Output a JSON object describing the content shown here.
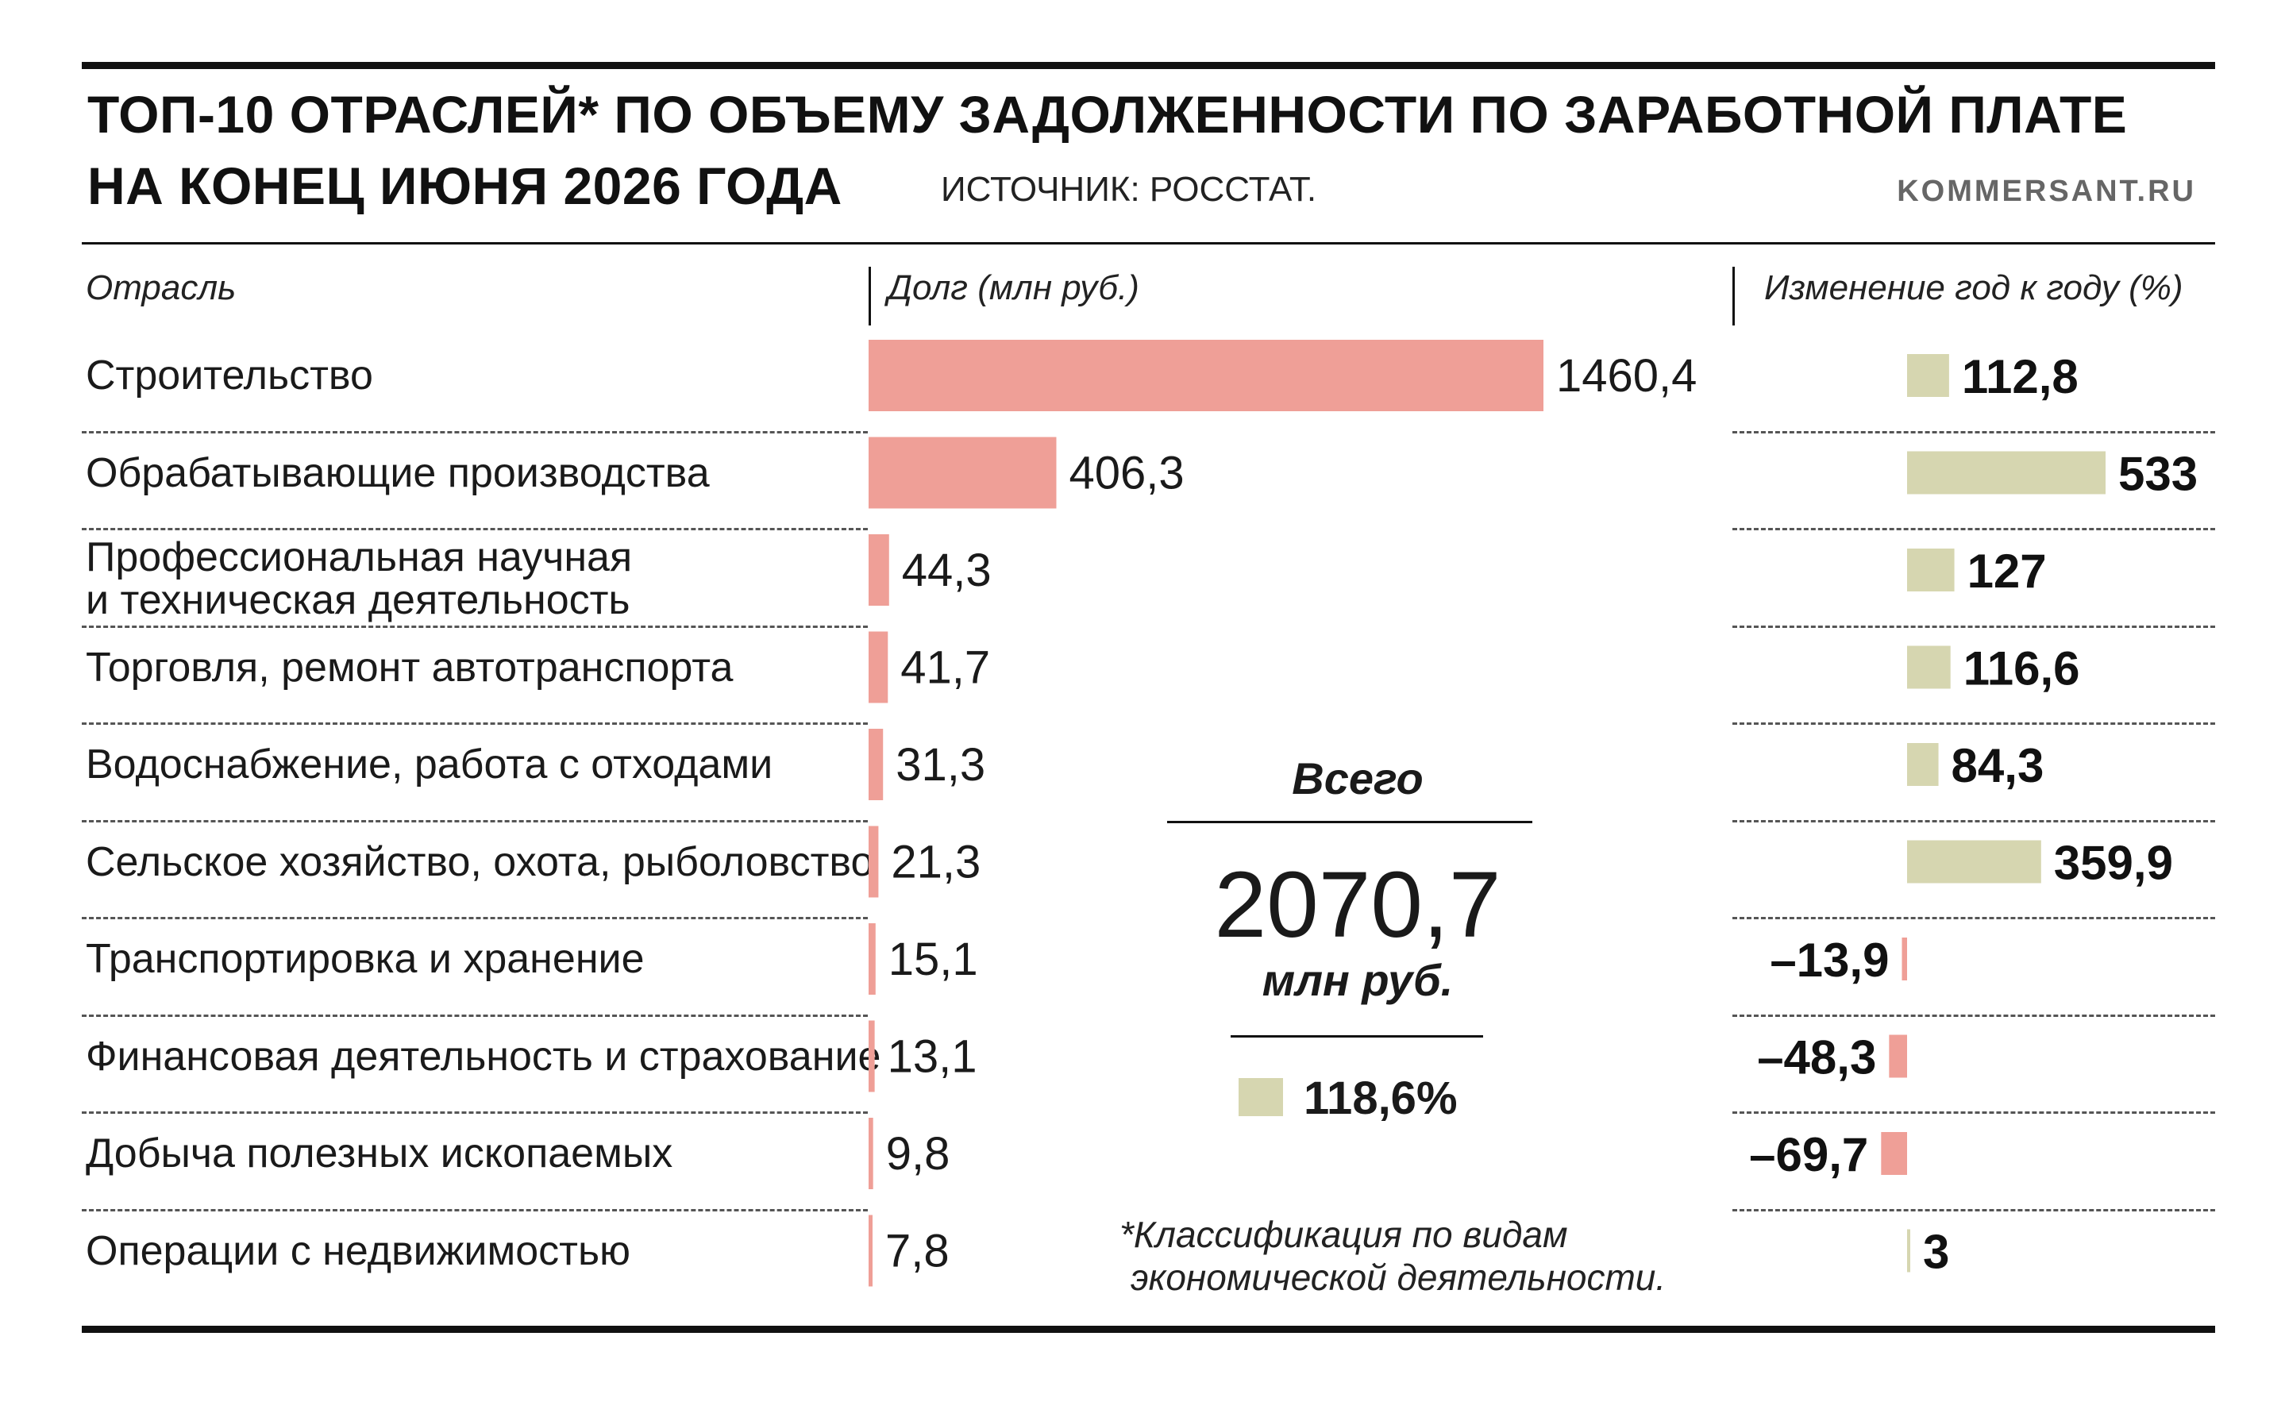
{
  "header": {
    "title_line1": "ТОП-10 ОТРАСЛЕЙ* ПО ОБЪЕМУ ЗАДОЛЖЕННОСТИ ПО ЗАРАБОТНОЙ ПЛАТЕ",
    "title_line2": "НА КОНЕЦ ИЮНЯ 2026 ГОДА",
    "source": "ИСТОЧНИК: РОССТАТ.",
    "site": "KOMMERSANT.RU"
  },
  "columns": {
    "category": "Отрасль",
    "debt": "Долг (млн руб.)",
    "change": "Изменение год к году (%)"
  },
  "chart_data": {
    "type": "bar",
    "categories": [
      "Строительство",
      "Обрабатывающие производства",
      "Профессиональная научная\nи техническая деятельность",
      "Торговля, ремонт автотранспорта",
      "Водоснабжение, работа с отходами",
      "Сельское хозяйство, охота, рыболовство",
      "Транспортировка и хранение",
      "Финансовая деятельность и страхование",
      "Добыча полезных ископаемых",
      "Операции с недвижимостью"
    ],
    "series": [
      {
        "name": "Долг (млн руб.)",
        "values": [
          1460.4,
          406.3,
          44.3,
          41.7,
          31.3,
          21.3,
          15.1,
          13.1,
          9.8,
          7.8
        ],
        "labels": [
          "1460,4",
          "406,3",
          "44,3",
          "41,7",
          "31,3",
          "21,3",
          "15,1",
          "13,1",
          "9,8",
          "7,8"
        ],
        "color": "#ef9f97"
      },
      {
        "name": "Изменение год к году (%)",
        "values": [
          112.8,
          533,
          127,
          116.6,
          84.3,
          359.9,
          -13.9,
          -48.3,
          -69.7,
          3
        ],
        "labels": [
          "112,8",
          "533",
          "127",
          "116,6",
          "84,3",
          "359,9",
          "–13,9",
          "–48,3",
          "–69,7",
          "3"
        ],
        "color_positive": "#d6d6b0",
        "color_negative": "#ef9f97"
      }
    ]
  },
  "summary": {
    "total_label": "Всего",
    "total_value": "2070,7",
    "total_unit": "млн руб.",
    "total_change": "118,6%"
  },
  "footnote": {
    "line1": "*Классификация по видам",
    "line2": "экономической деятельности."
  }
}
